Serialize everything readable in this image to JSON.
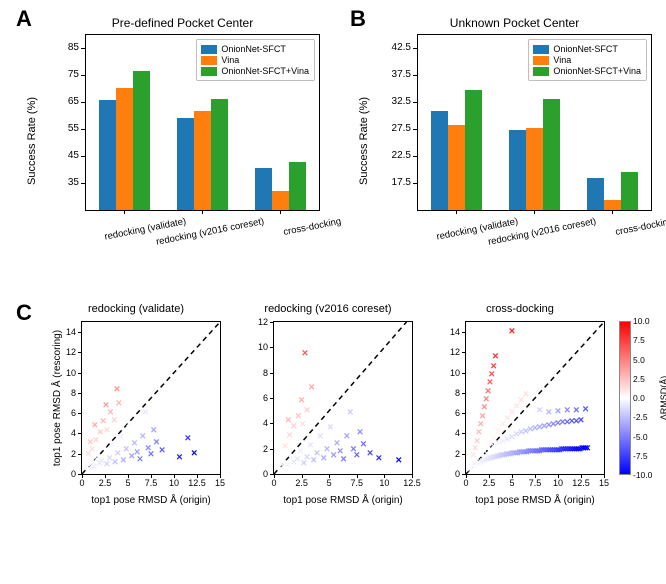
{
  "labels": {
    "A": "A",
    "B": "B",
    "C": "C"
  },
  "colors": {
    "series": [
      "#1f77b4",
      "#ff7f0e",
      "#2ca02c"
    ],
    "axis": "#000000",
    "background": "#ffffff",
    "legend_border": "#bfbfbf"
  },
  "fontsizes": {
    "panel_label": 22,
    "panel_title": 12,
    "axis_label": 11,
    "tick": 10,
    "legend": 9,
    "scatter_title": 11,
    "scatter_axis": 10
  },
  "legend_items": [
    "OnionNet-SFCT",
    "Vina",
    "OnionNet-SFCT+Vina"
  ],
  "panelA": {
    "type": "bar",
    "title": "Pre-defined Pocket Center",
    "ylabel": "Success Rate (%)",
    "ylim": [
      25,
      90
    ],
    "ytick_step": 10,
    "categories": [
      "redocking (validate)",
      "redocking (v2016 coreset)",
      "cross-docking"
    ],
    "series_values": [
      [
        66.0,
        59.0,
        40.7
      ],
      [
        70.3,
        61.7,
        32.0
      ],
      [
        76.8,
        66.3,
        42.8
      ]
    ],
    "bar_width": 0.22
  },
  "panelB": {
    "type": "bar",
    "title": "Unknown Pocket Center",
    "ylabel": "Success Rate (%)",
    "ylim": [
      12.5,
      45
    ],
    "ytick_step": 5,
    "categories": [
      "redocking (validate)",
      "redocking (v2016 coreset)",
      "cross-docking"
    ],
    "series_values": [
      [
        30.8,
        27.4,
        18.5
      ],
      [
        28.3,
        27.8,
        14.3
      ],
      [
        34.7,
        33.1,
        19.6
      ]
    ],
    "bar_width": 0.22
  },
  "panelC": {
    "type": "scatter_row",
    "xlabel": "top1 pose RMSD Å (origin)",
    "ylabel": "top1 pose RMSD Å (rescoring)",
    "marker": "x",
    "marker_size": 11,
    "diag_dash": "5 4",
    "colormap": {
      "low_color": "#0000ff",
      "mid_color": "#ffffff",
      "high_color": "#ff0000",
      "vmin": -10.0,
      "vmax": 10.0,
      "ticks": [
        -10.0,
        -7.5,
        -5.0,
        -2.5,
        0.0,
        2.5,
        5.0,
        7.5,
        10.0
      ],
      "label": "ΔRMSD(Å)"
    },
    "subplots": [
      {
        "title": "redocking (validate)",
        "xlim": [
          0,
          15
        ],
        "xtick_step": 2.5,
        "ylim": [
          0,
          15
        ],
        "ytick_step": 2,
        "points": [
          [
            0.6,
            0.6,
            0.0
          ],
          [
            1.0,
            0.9,
            -0.1
          ],
          [
            1.3,
            0.7,
            -0.6
          ],
          [
            1.6,
            1.4,
            -0.2
          ],
          [
            1.9,
            1.0,
            -0.9
          ],
          [
            2.1,
            1.2,
            -0.9
          ],
          [
            2.4,
            2.5,
            0.1
          ],
          [
            2.7,
            0.9,
            -1.8
          ],
          [
            3.0,
            1.5,
            -1.5
          ],
          [
            3.3,
            2.9,
            -0.4
          ],
          [
            3.6,
            1.1,
            -2.5
          ],
          [
            3.9,
            2.0,
            -1.9
          ],
          [
            4.2,
            3.6,
            -0.6
          ],
          [
            4.5,
            1.3,
            -3.2
          ],
          [
            4.8,
            2.4,
            -2.4
          ],
          [
            5.1,
            4.8,
            -0.3
          ],
          [
            5.4,
            1.7,
            -3.7
          ],
          [
            5.7,
            3.0,
            -2.7
          ],
          [
            6.0,
            2.1,
            -3.9
          ],
          [
            6.3,
            1.4,
            -4.9
          ],
          [
            6.6,
            3.7,
            -2.9
          ],
          [
            6.9,
            6.0,
            -0.9
          ],
          [
            7.2,
            2.5,
            -4.7
          ],
          [
            7.5,
            1.9,
            -5.6
          ],
          [
            7.8,
            4.2,
            -3.6
          ],
          [
            8.1,
            3.1,
            -5.0
          ],
          [
            8.7,
            2.3,
            -6.4
          ],
          [
            10.6,
            1.6,
            -9.0
          ],
          [
            11.5,
            3.5,
            -8.0
          ],
          [
            12.2,
            2.0,
            -10.0
          ],
          [
            1.1,
            2.4,
            1.3
          ],
          [
            1.5,
            3.3,
            1.8
          ],
          [
            2.0,
            4.0,
            2.0
          ],
          [
            2.3,
            5.1,
            2.8
          ],
          [
            2.7,
            4.2,
            1.5
          ],
          [
            3.1,
            6.0,
            2.9
          ],
          [
            3.5,
            5.2,
            1.7
          ],
          [
            4.0,
            6.9,
            2.9
          ],
          [
            1.4,
            4.7,
            3.3
          ],
          [
            2.6,
            6.7,
            4.1
          ],
          [
            3.8,
            8.3,
            4.5
          ],
          [
            0.9,
            3.1,
            2.2
          ],
          [
            0.7,
            1.9,
            1.2
          ]
        ]
      },
      {
        "title": "redocking (v2016 coreset)",
        "xlim": [
          0,
          12.5
        ],
        "xtick_step": 2.5,
        "ylim": [
          0,
          12
        ],
        "ytick_step": 2,
        "points": [
          [
            0.5,
            0.5,
            0.0
          ],
          [
            0.9,
            0.8,
            -0.1
          ],
          [
            1.2,
            0.6,
            -0.6
          ],
          [
            1.5,
            1.2,
            -0.3
          ],
          [
            1.8,
            0.9,
            -0.9
          ],
          [
            2.1,
            1.1,
            -1.0
          ],
          [
            2.4,
            1.7,
            -0.7
          ],
          [
            2.7,
            0.8,
            -1.9
          ],
          [
            3.0,
            1.3,
            -1.7
          ],
          [
            3.3,
            2.2,
            -1.1
          ],
          [
            3.6,
            1.0,
            -2.6
          ],
          [
            3.9,
            1.6,
            -2.3
          ],
          [
            4.2,
            2.9,
            -1.3
          ],
          [
            4.5,
            1.2,
            -3.3
          ],
          [
            4.8,
            1.9,
            -2.9
          ],
          [
            5.1,
            3.6,
            -1.5
          ],
          [
            5.4,
            1.4,
            -4.0
          ],
          [
            5.7,
            2.4,
            -3.3
          ],
          [
            6.0,
            1.7,
            -4.3
          ],
          [
            6.3,
            1.1,
            -5.2
          ],
          [
            6.6,
            2.9,
            -3.7
          ],
          [
            6.9,
            4.8,
            -2.1
          ],
          [
            7.2,
            1.9,
            -5.3
          ],
          [
            7.5,
            1.4,
            -6.1
          ],
          [
            7.8,
            3.2,
            -4.6
          ],
          [
            8.1,
            2.3,
            -5.8
          ],
          [
            8.7,
            1.6,
            -7.1
          ],
          [
            9.5,
            1.2,
            -8.3
          ],
          [
            11.3,
            1.0,
            -10.0
          ],
          [
            1.0,
            2.1,
            1.1
          ],
          [
            1.4,
            3.0,
            1.6
          ],
          [
            1.8,
            3.7,
            1.9
          ],
          [
            2.2,
            4.5,
            2.3
          ],
          [
            2.6,
            3.9,
            1.3
          ],
          [
            3.0,
            5.0,
            2.0
          ],
          [
            1.3,
            4.2,
            2.9
          ],
          [
            2.5,
            5.8,
            3.3
          ],
          [
            2.8,
            9.5,
            6.7
          ],
          [
            3.4,
            6.8,
            3.4
          ]
        ]
      },
      {
        "title": "cross-docking",
        "xlim": [
          0,
          15
        ],
        "xtick_step": 2.5,
        "ylim": [
          0,
          15
        ],
        "ytick_step": 2,
        "points": [
          [
            0.4,
            0.4,
            0.0
          ],
          [
            0.6,
            0.5,
            -0.1
          ],
          [
            0.8,
            0.7,
            -0.1
          ],
          [
            1.0,
            0.8,
            -0.2
          ],
          [
            1.2,
            0.9,
            -0.3
          ],
          [
            1.4,
            1.0,
            -0.4
          ],
          [
            1.6,
            1.1,
            -0.5
          ],
          [
            1.8,
            1.2,
            -0.6
          ],
          [
            2.0,
            1.3,
            -0.7
          ],
          [
            2.2,
            1.4,
            -0.8
          ],
          [
            2.4,
            1.4,
            -1.0
          ],
          [
            2.6,
            1.5,
            -1.1
          ],
          [
            2.8,
            1.5,
            -1.3
          ],
          [
            3.0,
            1.6,
            -1.4
          ],
          [
            3.2,
            1.6,
            -1.6
          ],
          [
            3.4,
            1.7,
            -1.7
          ],
          [
            3.6,
            1.7,
            -1.9
          ],
          [
            3.8,
            1.8,
            -2.0
          ],
          [
            4.0,
            1.8,
            -2.2
          ],
          [
            4.2,
            1.8,
            -2.4
          ],
          [
            4.4,
            1.9,
            -2.5
          ],
          [
            4.6,
            1.9,
            -2.7
          ],
          [
            4.8,
            1.9,
            -2.9
          ],
          [
            5.0,
            2.0,
            -3.0
          ],
          [
            5.2,
            2.0,
            -3.2
          ],
          [
            5.4,
            2.0,
            -3.4
          ],
          [
            5.6,
            2.0,
            -3.6
          ],
          [
            5.8,
            2.1,
            -3.7
          ],
          [
            6.0,
            2.1,
            -3.9
          ],
          [
            6.2,
            2.1,
            -4.1
          ],
          [
            6.4,
            2.1,
            -4.3
          ],
          [
            6.6,
            2.1,
            -4.5
          ],
          [
            6.8,
            2.2,
            -4.6
          ],
          [
            7.0,
            2.2,
            -4.8
          ],
          [
            7.2,
            2.2,
            -5.0
          ],
          [
            7.4,
            2.2,
            -5.2
          ],
          [
            7.6,
            2.2,
            -5.4
          ],
          [
            7.8,
            2.2,
            -5.6
          ],
          [
            8.0,
            2.2,
            -5.8
          ],
          [
            8.2,
            2.3,
            -5.9
          ],
          [
            8.4,
            2.3,
            -6.1
          ],
          [
            8.6,
            2.3,
            -6.3
          ],
          [
            8.8,
            2.3,
            -6.5
          ],
          [
            9.0,
            2.3,
            -6.7
          ],
          [
            9.2,
            2.3,
            -6.9
          ],
          [
            9.4,
            2.3,
            -7.1
          ],
          [
            9.6,
            2.3,
            -7.3
          ],
          [
            9.8,
            2.3,
            -7.5
          ],
          [
            10.0,
            2.3,
            -7.7
          ],
          [
            10.2,
            2.3,
            -7.9
          ],
          [
            10.4,
            2.4,
            -8.0
          ],
          [
            10.6,
            2.4,
            -8.2
          ],
          [
            10.8,
            2.4,
            -8.4
          ],
          [
            11.0,
            2.4,
            -8.6
          ],
          [
            11.2,
            2.4,
            -8.8
          ],
          [
            11.4,
            2.4,
            -9.0
          ],
          [
            11.6,
            2.4,
            -9.2
          ],
          [
            11.8,
            2.4,
            -9.4
          ],
          [
            12.0,
            2.4,
            -9.6
          ],
          [
            12.2,
            2.4,
            -9.8
          ],
          [
            12.4,
            2.4,
            -10.0
          ],
          [
            12.6,
            2.5,
            -10.0
          ],
          [
            12.8,
            2.5,
            -10.0
          ],
          [
            13.0,
            2.5,
            -10.0
          ],
          [
            13.2,
            2.5,
            -10.0
          ],
          [
            2.0,
            2.2,
            0.2
          ],
          [
            2.5,
            2.9,
            0.4
          ],
          [
            3.0,
            3.5,
            0.5
          ],
          [
            3.5,
            4.1,
            0.6
          ],
          [
            4.0,
            4.8,
            0.8
          ],
          [
            4.5,
            5.4,
            0.9
          ],
          [
            5.0,
            6.0,
            1.0
          ],
          [
            5.5,
            6.6,
            1.1
          ],
          [
            6.0,
            7.2,
            1.2
          ],
          [
            6.5,
            7.8,
            1.3
          ],
          [
            0.8,
            1.8,
            1.0
          ],
          [
            1.0,
            2.5,
            1.5
          ],
          [
            1.2,
            3.2,
            2.0
          ],
          [
            1.4,
            4.0,
            2.6
          ],
          [
            1.6,
            4.8,
            3.2
          ],
          [
            1.8,
            5.6,
            3.8
          ],
          [
            2.0,
            6.5,
            4.5
          ],
          [
            2.2,
            7.3,
            5.1
          ],
          [
            2.4,
            8.1,
            5.7
          ],
          [
            2.6,
            9.0,
            6.4
          ],
          [
            2.8,
            9.8,
            7.0
          ],
          [
            3.0,
            10.6,
            7.6
          ],
          [
            3.2,
            11.5,
            8.3
          ],
          [
            5.0,
            14.0,
            9.0
          ],
          [
            8.0,
            6.2,
            -1.8
          ],
          [
            9.0,
            6.0,
            -3.0
          ],
          [
            10.0,
            6.1,
            -3.9
          ],
          [
            11.0,
            6.2,
            -4.8
          ],
          [
            12.0,
            6.2,
            -5.8
          ],
          [
            13.0,
            6.3,
            -6.7
          ],
          [
            3.0,
            2.7,
            -0.3
          ],
          [
            3.5,
            3.0,
            -0.5
          ],
          [
            4.0,
            3.2,
            -0.8
          ],
          [
            4.5,
            3.4,
            -1.1
          ],
          [
            5.0,
            3.6,
            -1.4
          ],
          [
            5.5,
            3.8,
            -1.7
          ],
          [
            6.0,
            4.0,
            -2.0
          ],
          [
            6.5,
            4.1,
            -2.4
          ],
          [
            7.0,
            4.3,
            -2.7
          ],
          [
            7.5,
            4.4,
            -3.1
          ],
          [
            8.0,
            4.5,
            -3.5
          ],
          [
            8.5,
            4.6,
            -3.9
          ],
          [
            9.0,
            4.7,
            -4.3
          ],
          [
            9.5,
            4.8,
            -4.7
          ],
          [
            10.0,
            4.9,
            -5.1
          ],
          [
            10.5,
            5.0,
            -5.5
          ],
          [
            11.0,
            5.0,
            -6.0
          ],
          [
            11.5,
            5.1,
            -6.4
          ],
          [
            12.0,
            5.1,
            -6.9
          ],
          [
            12.5,
            5.2,
            -7.3
          ]
        ]
      }
    ]
  }
}
